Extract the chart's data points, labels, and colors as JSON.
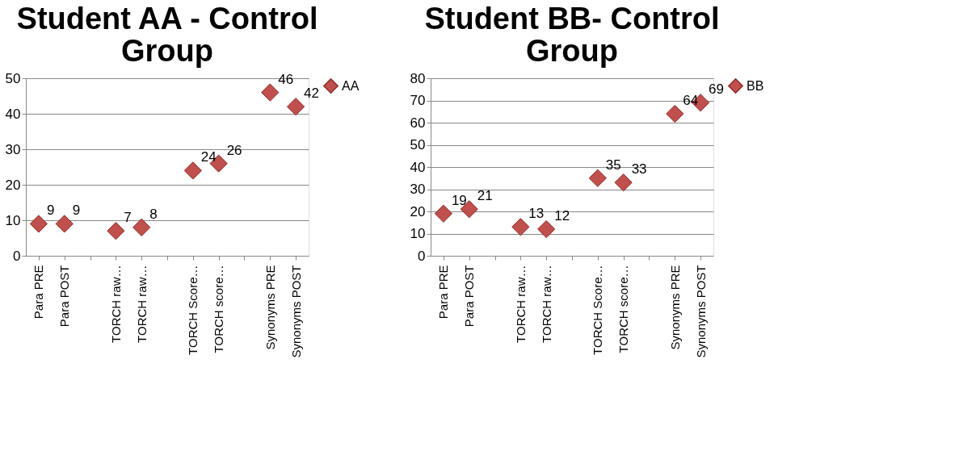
{
  "chart_data": [
    {
      "type": "scatter",
      "title": "Student AA - Control Group",
      "categories": [
        "Para PRE",
        "Para POST",
        null,
        "TORCH  raw…",
        "TORCH  raw…",
        null,
        "TORCH  Score…",
        "TORCH  score…",
        null,
        "Synonyms PRE",
        "Synonyms POST"
      ],
      "series": [
        {
          "name": "AA",
          "color": "#c0504d",
          "values": [
            9,
            9,
            null,
            7,
            8,
            null,
            24,
            26,
            null,
            46,
            42
          ]
        }
      ],
      "ylim": [
        0,
        50
      ],
      "yticks": [
        0,
        10,
        20,
        30,
        40,
        50
      ],
      "grid": "y",
      "legend": "right",
      "marker": "diamond",
      "data_labels": true
    },
    {
      "type": "scatter",
      "title": "Student BB- Control Group",
      "categories": [
        "Para PRE",
        "Para POST",
        null,
        "TORCH  raw…",
        "TORCH  raw…",
        null,
        "TORCH  Score…",
        "TORCH  score…",
        null,
        "Synonyms PRE",
        "Synonyms POST"
      ],
      "series": [
        {
          "name": "BB",
          "color": "#c0504d",
          "values": [
            19,
            21,
            null,
            13,
            12,
            null,
            35,
            33,
            null,
            64,
            69
          ]
        }
      ],
      "ylim": [
        0,
        80
      ],
      "yticks": [
        0,
        10,
        20,
        30,
        40,
        50,
        60,
        70,
        80
      ],
      "grid": "y",
      "legend": "right",
      "marker": "diamond",
      "data_labels": true
    }
  ]
}
